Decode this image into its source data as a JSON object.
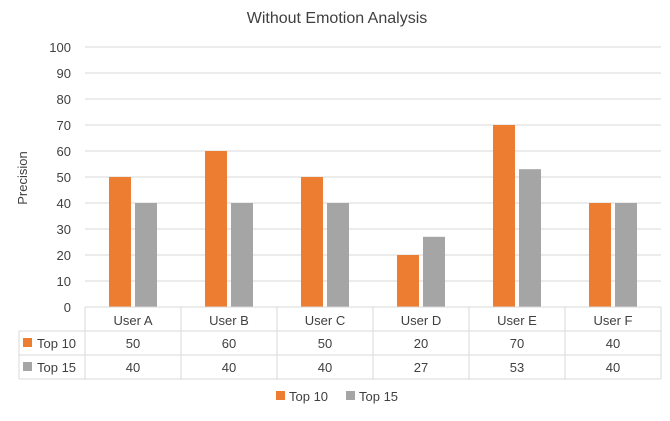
{
  "chart_data": {
    "type": "bar",
    "title": "Without Emotion Analysis",
    "ylabel": "Precision",
    "xlabel": "",
    "ylim": [
      0,
      100
    ],
    "yticks": [
      0,
      10,
      20,
      30,
      40,
      50,
      60,
      70,
      80,
      90,
      100
    ],
    "grid": true,
    "legend_position": "bottom",
    "data_table": true,
    "categories": [
      "User A",
      "User B",
      "User C",
      "User D",
      "User E",
      "User F"
    ],
    "series": [
      {
        "name": "Top 10",
        "color": "#ED7D31",
        "values": [
          50,
          60,
          50,
          20,
          70,
          40
        ]
      },
      {
        "name": "Top 15",
        "color": "#A5A5A5",
        "values": [
          40,
          40,
          40,
          27,
          53,
          40
        ]
      }
    ]
  }
}
